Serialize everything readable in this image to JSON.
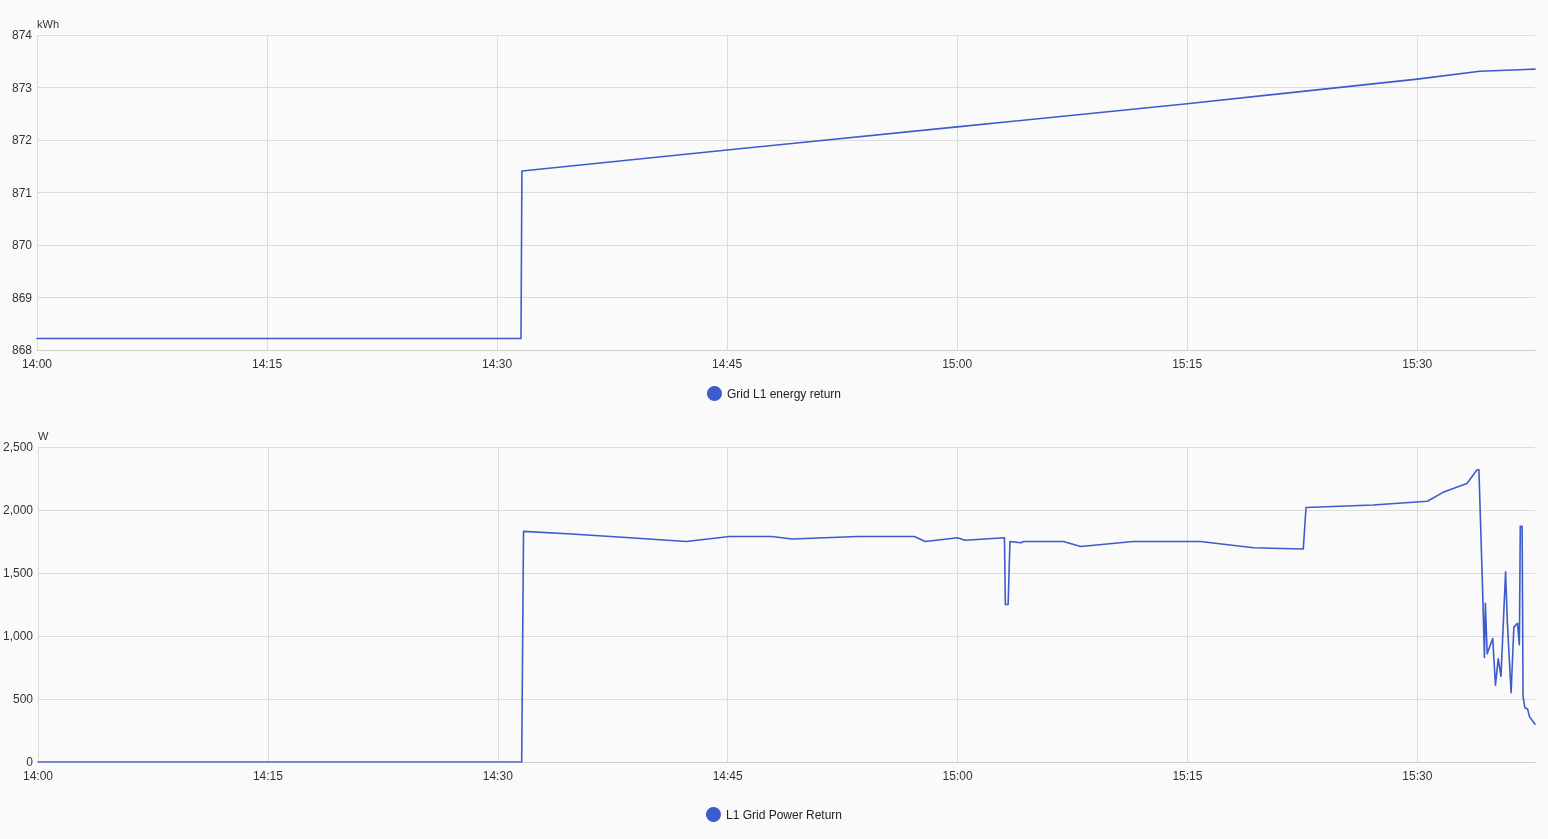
{
  "chart_data": [
    {
      "type": "line",
      "ylabel": "kWh",
      "legend": "bottom",
      "grid": true,
      "marker": "none",
      "line_style": "solid",
      "xlim": [
        14,
        15.628
      ],
      "xticks": [
        {
          "value": 14,
          "label": "14:00"
        },
        {
          "value": 14.25,
          "label": "14:15"
        },
        {
          "value": 14.5,
          "label": "14:30"
        },
        {
          "value": 14.75,
          "label": "14:45"
        },
        {
          "value": 15,
          "label": "15:00"
        },
        {
          "value": 15.25,
          "label": "15:15"
        },
        {
          "value": 15.5,
          "label": "15:30"
        }
      ],
      "ylim": [
        868,
        874
      ],
      "yticks": [
        868,
        869,
        870,
        871,
        872,
        873,
        874
      ],
      "x": [
        14,
        14.526,
        14.527,
        14.75,
        15.0,
        15.25,
        15.5,
        15.568,
        15.628
      ],
      "series": [
        {
          "name": "Grid L1 energy return",
          "color": "#3d5ccc",
          "values": [
            868.22,
            868.22,
            871.41,
            871.81,
            872.25,
            872.69,
            873.16,
            873.31,
            873.35
          ]
        }
      ]
    },
    {
      "type": "line",
      "ylabel": "W",
      "legend": "bottom",
      "grid": true,
      "marker": "none",
      "line_style": "solid",
      "xlim": [
        14,
        15.628
      ],
      "xticks": [
        {
          "value": 14,
          "label": "14:00"
        },
        {
          "value": 14.25,
          "label": "14:15"
        },
        {
          "value": 14.5,
          "label": "14:30"
        },
        {
          "value": 14.75,
          "label": "14:45"
        },
        {
          "value": 15,
          "label": "15:00"
        },
        {
          "value": 15.25,
          "label": "15:15"
        },
        {
          "value": 15.5,
          "label": "15:30"
        }
      ],
      "ylim": [
        0,
        2500
      ],
      "yticks": [
        0,
        500,
        {
          "value": 1000,
          "label": "1,000"
        },
        {
          "value": 1500,
          "label": "1,500"
        },
        {
          "value": 2000,
          "label": "2,000"
        },
        {
          "value": 2500,
          "label": "2,500"
        }
      ],
      "x": [
        14,
        14.526,
        14.528,
        14.58,
        14.644,
        14.705,
        14.752,
        14.798,
        14.82,
        14.891,
        14.953,
        14.965,
        15.0,
        15.008,
        15.051,
        15.052,
        15.055,
        15.057,
        15.069,
        15.072,
        15.115,
        15.134,
        15.191,
        15.264,
        15.322,
        15.376,
        15.379,
        15.452,
        15.511,
        15.528,
        15.554,
        15.565,
        15.567,
        15.571,
        15.573,
        15.574,
        15.576,
        15.582,
        15.585,
        15.588,
        15.591,
        15.596,
        15.598,
        15.602,
        15.605,
        15.609,
        15.611,
        15.612,
        15.614,
        15.615,
        15.617,
        15.62,
        15.622,
        15.628
      ],
      "series": [
        {
          "name": "L1 Grid Power Return",
          "color": "#3d5ccc",
          "values": [
            0,
            0,
            1830,
            1810,
            1780,
            1750,
            1790,
            1790,
            1770,
            1790,
            1790,
            1750,
            1780,
            1760,
            1780,
            1250,
            1250,
            1750,
            1740,
            1750,
            1750,
            1710,
            1750,
            1750,
            1700,
            1690,
            2020,
            2040,
            2070,
            2140,
            2210,
            2320,
            2320,
            1370,
            830,
            1260,
            860,
            980,
            610,
            820,
            680,
            1510,
            1100,
            550,
            1070,
            1100,
            930,
            1870,
            1870,
            520,
            430,
            420,
            360,
            300
          ]
        }
      ]
    }
  ]
}
